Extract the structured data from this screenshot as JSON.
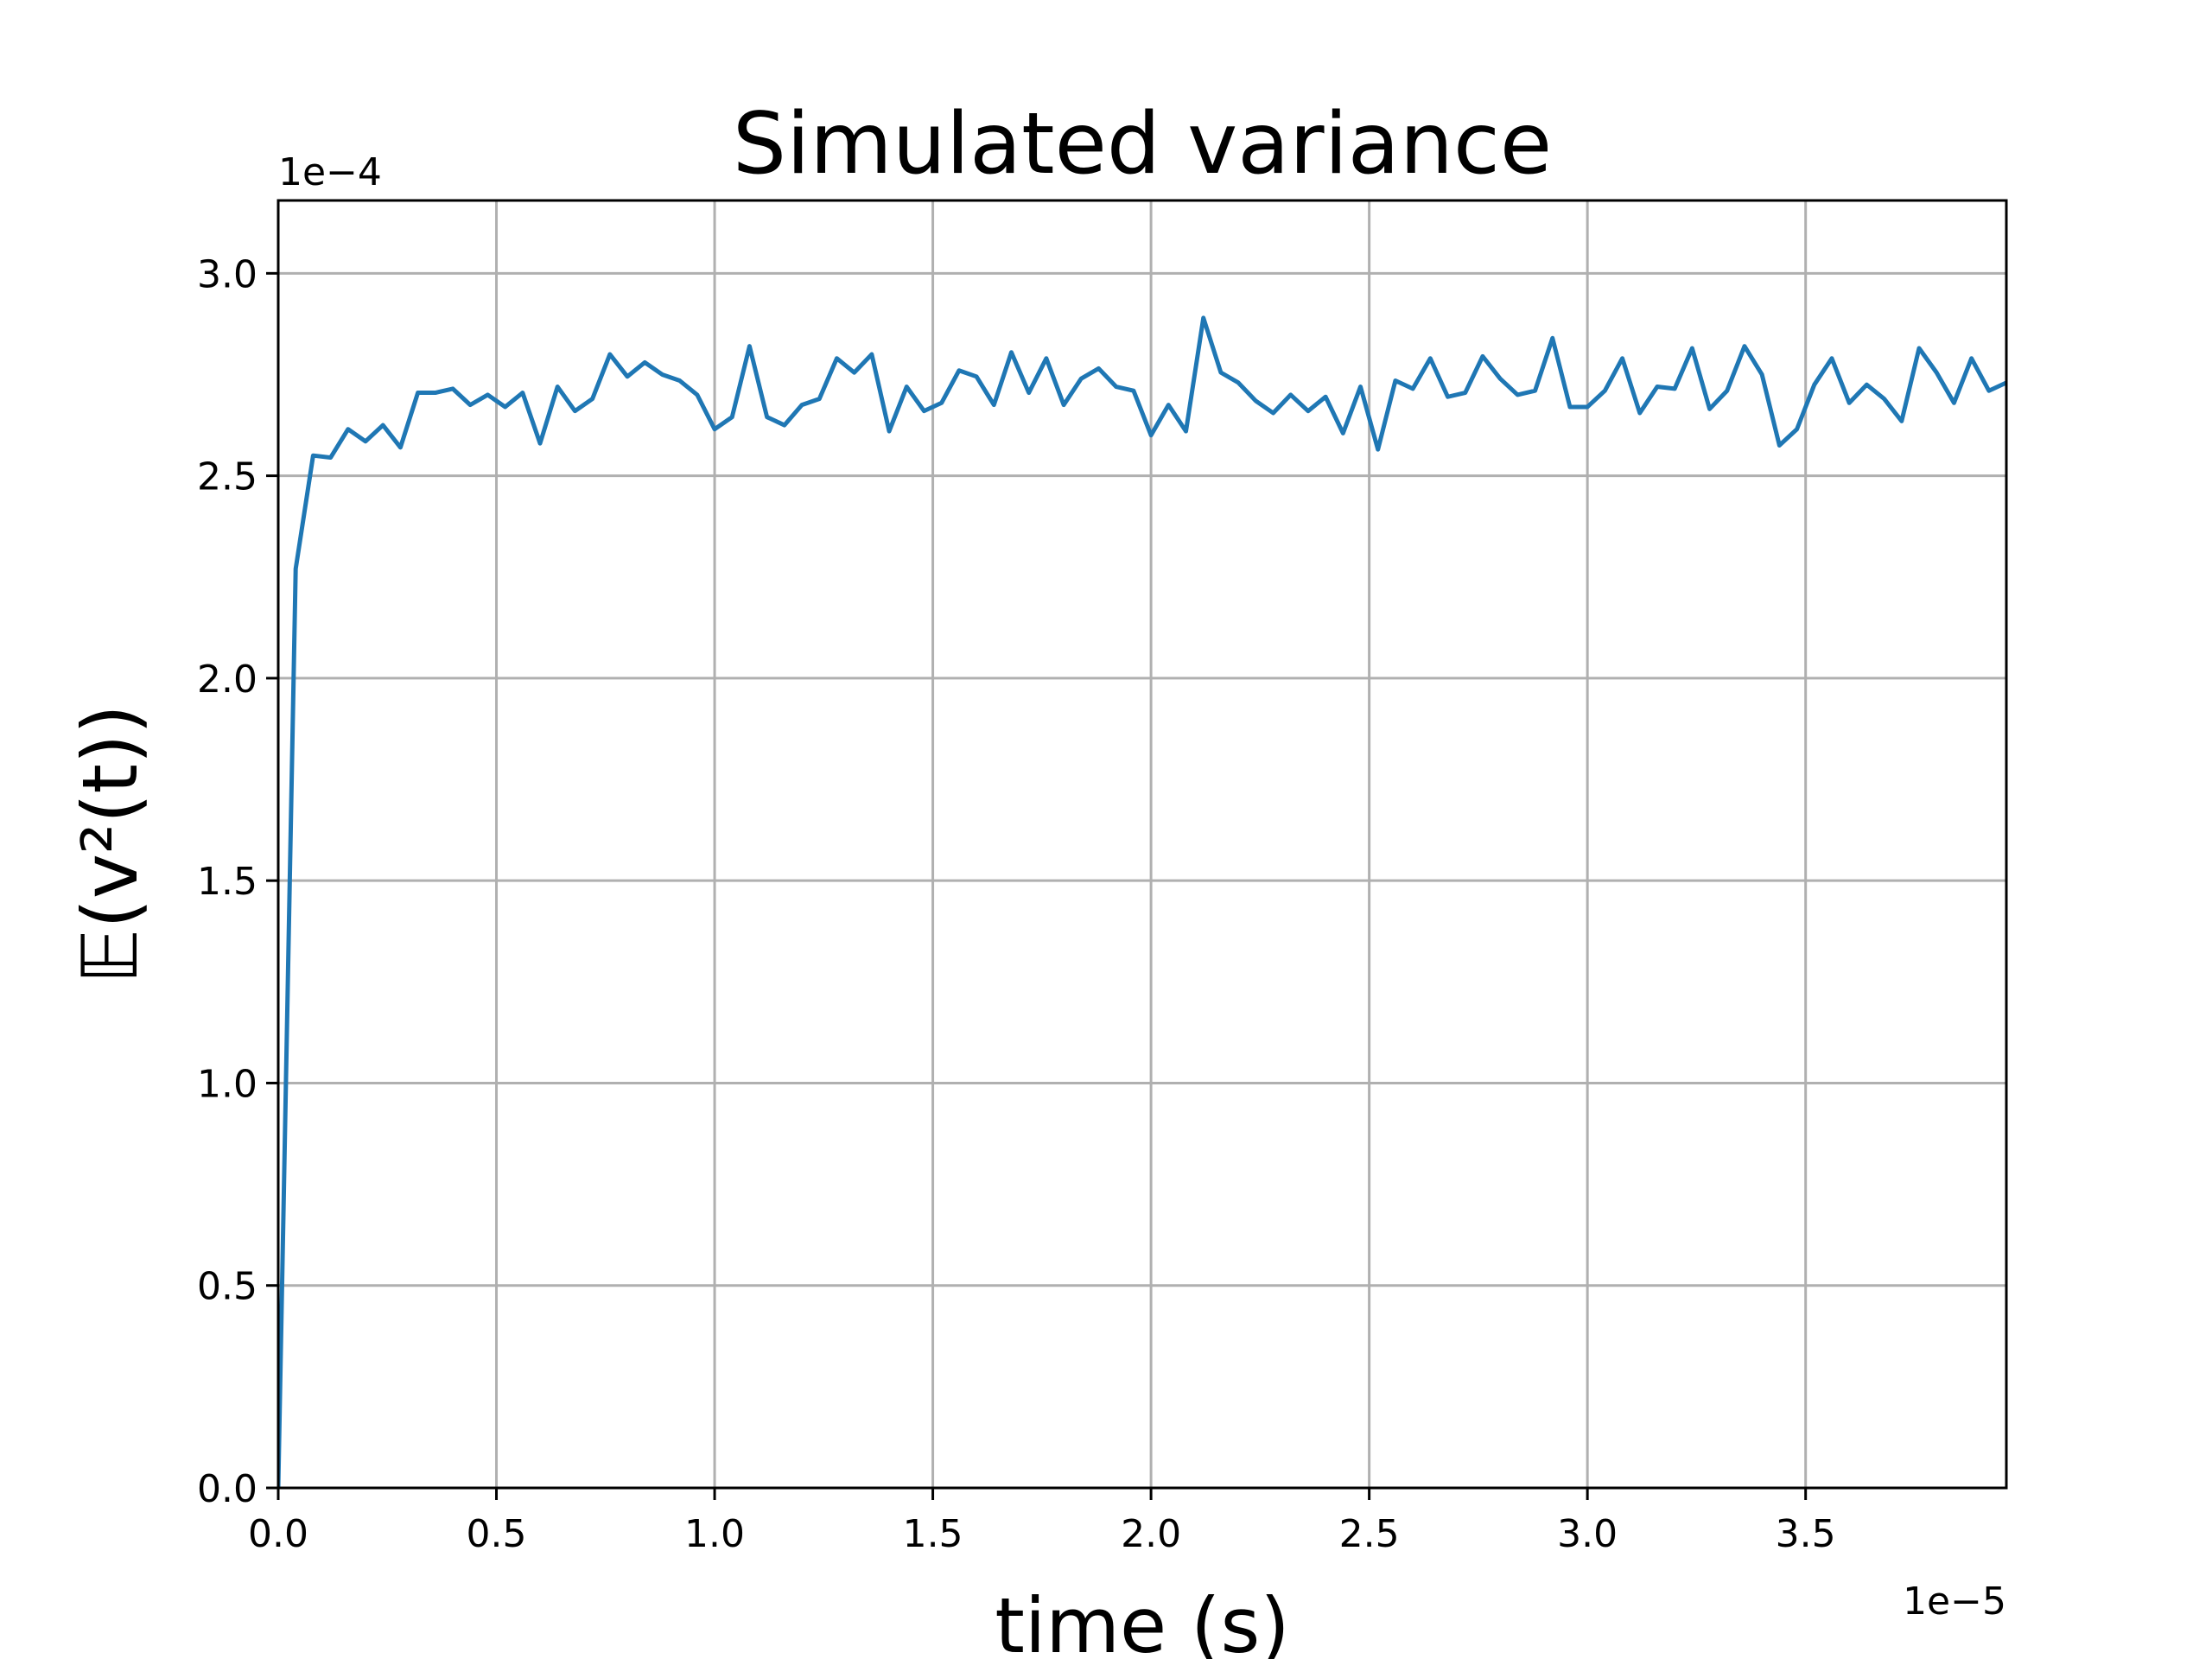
{
  "chart_data": {
    "type": "line",
    "title": "Simulated variance",
    "xlabel": "time (s)",
    "ylabel": "𝔼(v²(t))",
    "x_offset_label": "1e−5",
    "y_offset_label": "1e−4",
    "xlim": [
      0.0,
      3.96
    ],
    "ylim": [
      0.0,
      3.18
    ],
    "grid": true,
    "x_ticks": [
      0.0,
      0.5,
      1.0,
      1.5,
      2.0,
      2.5,
      3.0,
      3.5
    ],
    "x_tick_labels": [
      "0.0",
      "0.5",
      "1.0",
      "1.5",
      "2.0",
      "2.5",
      "3.0",
      "3.5"
    ],
    "y_ticks": [
      0.0,
      0.5,
      1.0,
      1.5,
      2.0,
      2.5,
      3.0
    ],
    "y_tick_labels": [
      "0.0",
      "0.5",
      "1.0",
      "1.5",
      "2.0",
      "2.5",
      "3.0"
    ],
    "series": [
      {
        "color": "#1f77b4",
        "x": [
          0.0,
          0.04,
          0.08,
          0.12,
          0.16,
          0.2,
          0.24,
          0.28,
          0.32,
          0.36,
          0.4,
          0.44,
          0.48,
          0.52,
          0.56,
          0.6,
          0.64,
          0.68,
          0.72,
          0.76,
          0.8,
          0.84,
          0.88,
          0.92,
          0.96,
          1.0,
          1.04,
          1.08,
          1.12,
          1.16,
          1.2,
          1.24,
          1.28,
          1.32,
          1.36,
          1.4,
          1.44,
          1.48,
          1.52,
          1.56,
          1.6,
          1.64,
          1.68,
          1.72,
          1.76,
          1.8,
          1.84,
          1.88,
          1.92,
          1.96,
          2.0,
          2.04,
          2.08,
          2.12,
          2.16,
          2.2,
          2.24,
          2.28,
          2.32,
          2.36,
          2.4,
          2.44,
          2.48,
          2.52,
          2.56,
          2.6,
          2.64,
          2.68,
          2.72,
          2.76,
          2.8,
          2.84,
          2.88,
          2.92,
          2.96,
          3.0,
          3.04,
          3.08,
          3.12,
          3.16,
          3.2,
          3.24,
          3.28,
          3.32,
          3.36,
          3.4,
          3.44,
          3.48,
          3.52,
          3.56,
          3.6,
          3.64,
          3.68,
          3.72,
          3.76,
          3.8,
          3.84,
          3.88,
          3.92,
          3.96
        ],
        "y": [
          0.0,
          2.27,
          2.55,
          2.545,
          2.615,
          2.585,
          2.625,
          2.57,
          2.705,
          2.705,
          2.715,
          2.675,
          2.7,
          2.67,
          2.705,
          2.58,
          2.72,
          2.66,
          2.69,
          2.8,
          2.745,
          2.78,
          2.75,
          2.735,
          2.7,
          2.615,
          2.645,
          2.82,
          2.645,
          2.625,
          2.675,
          2.69,
          2.79,
          2.755,
          2.8,
          2.61,
          2.72,
          2.66,
          2.68,
          2.76,
          2.745,
          2.675,
          2.805,
          2.705,
          2.79,
          2.675,
          2.74,
          2.765,
          2.72,
          2.71,
          2.6,
          2.675,
          2.61,
          2.89,
          2.755,
          2.73,
          2.685,
          2.655,
          2.7,
          2.66,
          2.695,
          2.605,
          2.72,
          2.565,
          2.735,
          2.715,
          2.79,
          2.695,
          2.705,
          2.795,
          2.74,
          2.7,
          2.71,
          2.84,
          2.67,
          2.67,
          2.71,
          2.79,
          2.655,
          2.72,
          2.715,
          2.815,
          2.665,
          2.71,
          2.82,
          2.75,
          2.575,
          2.615,
          2.725,
          2.79,
          2.68,
          2.725,
          2.69,
          2.635,
          2.815,
          2.755,
          2.68,
          2.79,
          2.71,
          2.73
        ]
      }
    ]
  }
}
